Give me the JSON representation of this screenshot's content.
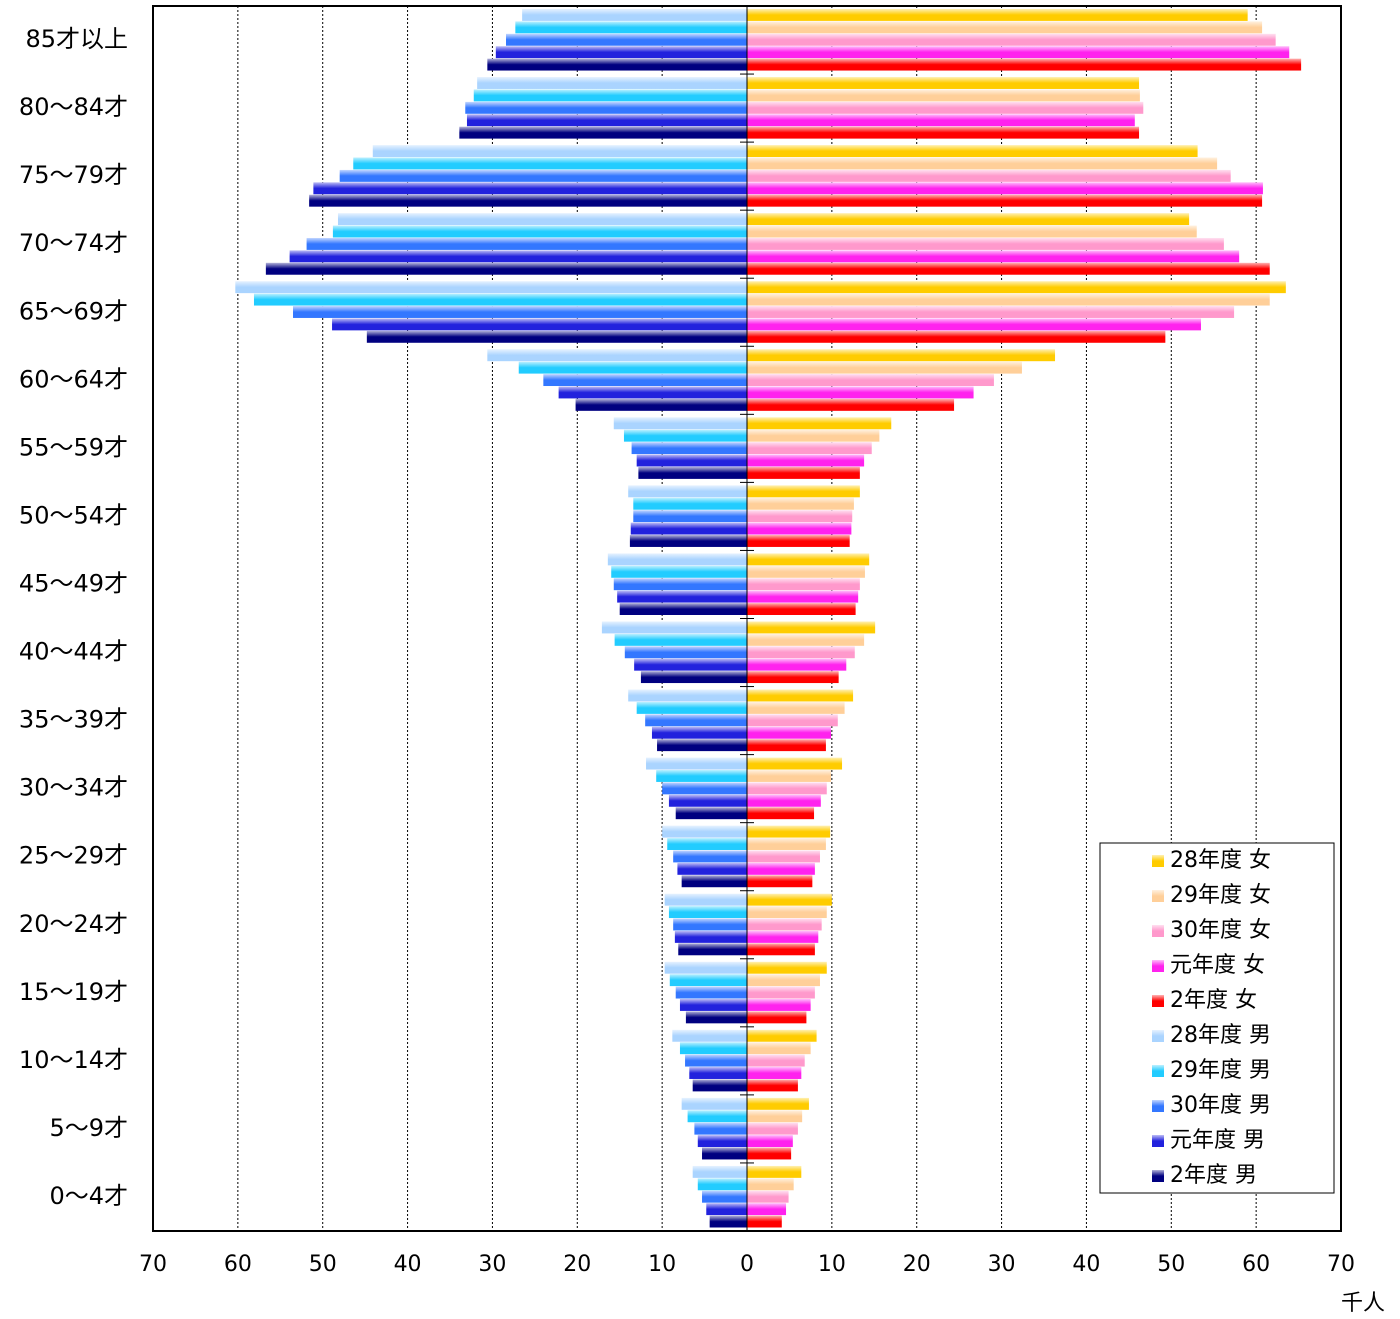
{
  "chart_data": {
    "type": "pyramid",
    "xlabel": "千人",
    "categories": [
      "85才以上",
      "80～84才",
      "75～79才",
      "70～74才",
      "65～69才",
      "60～64才",
      "55～59才",
      "50～54才",
      "45～49才",
      "40～44才",
      "35～39才",
      "30～34才",
      "25～29才",
      "20～24才",
      "15～19才",
      "10～14才",
      "5～9才",
      "0～4才"
    ],
    "xlim": [
      -70,
      70
    ],
    "xticks": [
      {
        "value": -70,
        "label": "70"
      },
      {
        "value": -60,
        "label": "60"
      },
      {
        "value": -50,
        "label": "50"
      },
      {
        "value": -40,
        "label": "40"
      },
      {
        "value": -30,
        "label": "30"
      },
      {
        "value": -20,
        "label": "20"
      },
      {
        "value": -10,
        "label": "10"
      },
      0,
      10,
      20,
      30,
      40,
      50,
      60,
      70
    ],
    "grid": true,
    "legend": "lower right",
    "series": [
      {
        "name": "28年度 女",
        "color": "#ffcc00",
        "values": [
          59.0,
          46.2,
          53.1,
          52.1,
          63.5,
          36.3,
          17.0,
          13.3,
          14.4,
          15.1,
          12.5,
          11.2,
          9.8,
          10.0,
          9.4,
          8.2,
          7.3,
          6.4
        ]
      },
      {
        "name": "29年度 女",
        "color": "#ffcf99",
        "values": [
          60.7,
          46.3,
          55.4,
          53.0,
          61.6,
          32.4,
          15.6,
          12.6,
          13.9,
          13.8,
          11.5,
          9.9,
          9.3,
          9.4,
          8.6,
          7.5,
          6.5,
          5.5
        ]
      },
      {
        "name": "30年度 女",
        "color": "#ff99cc",
        "values": [
          62.3,
          46.7,
          57.0,
          56.2,
          57.4,
          29.1,
          14.7,
          12.4,
          13.3,
          12.7,
          10.7,
          9.4,
          8.6,
          8.8,
          8.0,
          6.8,
          6.0,
          4.9
        ]
      },
      {
        "name": "元年度 女",
        "color": "#ff22ee",
        "values": [
          63.9,
          45.7,
          60.8,
          58.0,
          53.5,
          26.7,
          13.8,
          12.3,
          13.1,
          11.7,
          9.9,
          8.7,
          8.0,
          8.4,
          7.5,
          6.4,
          5.4,
          4.6
        ]
      },
      {
        "name": "2年度 女",
        "color": "#ff0000",
        "values": [
          65.3,
          46.2,
          60.7,
          61.6,
          49.3,
          24.4,
          13.3,
          12.1,
          12.8,
          10.8,
          9.3,
          7.9,
          7.7,
          8.0,
          7.0,
          6.0,
          5.2,
          4.1
        ]
      },
      {
        "name": "28年度 男",
        "color": "#aad4ff",
        "values": [
          -26.5,
          -31.8,
          -44.1,
          -48.2,
          -60.3,
          -30.6,
          -15.7,
          -14.0,
          -16.4,
          -17.1,
          -14.0,
          -11.9,
          -10.0,
          -9.7,
          -9.7,
          -8.8,
          -7.7,
          -6.4
        ]
      },
      {
        "name": "29年度 男",
        "color": "#22ccff",
        "values": [
          -27.3,
          -32.2,
          -46.4,
          -48.8,
          -58.1,
          -26.9,
          -14.5,
          -13.4,
          -16.0,
          -15.6,
          -13.0,
          -10.7,
          -9.4,
          -9.2,
          -9.1,
          -7.9,
          -7.0,
          -5.8
        ]
      },
      {
        "name": "30年度 男",
        "color": "#3377ff",
        "values": [
          -28.4,
          -33.2,
          -48.0,
          -51.9,
          -53.5,
          -24.0,
          -13.6,
          -13.4,
          -15.7,
          -14.4,
          -12.0,
          -10.0,
          -8.7,
          -8.7,
          -8.4,
          -7.3,
          -6.2,
          -5.3
        ]
      },
      {
        "name": "元年度 男",
        "color": "#2222dd",
        "values": [
          -29.6,
          -33.0,
          -51.1,
          -53.9,
          -48.9,
          -22.2,
          -13.0,
          -13.7,
          -15.3,
          -13.3,
          -11.2,
          -9.2,
          -8.2,
          -8.5,
          -7.9,
          -6.8,
          -5.8,
          -4.8
        ]
      },
      {
        "name": "2年度 男",
        "color": "#000080",
        "values": [
          -30.6,
          -33.9,
          -51.6,
          -56.7,
          -44.8,
          -20.2,
          -12.8,
          -13.8,
          -15.0,
          -12.5,
          -10.6,
          -8.4,
          -7.7,
          -8.1,
          -7.2,
          -6.4,
          -5.3,
          -4.4
        ]
      }
    ]
  }
}
